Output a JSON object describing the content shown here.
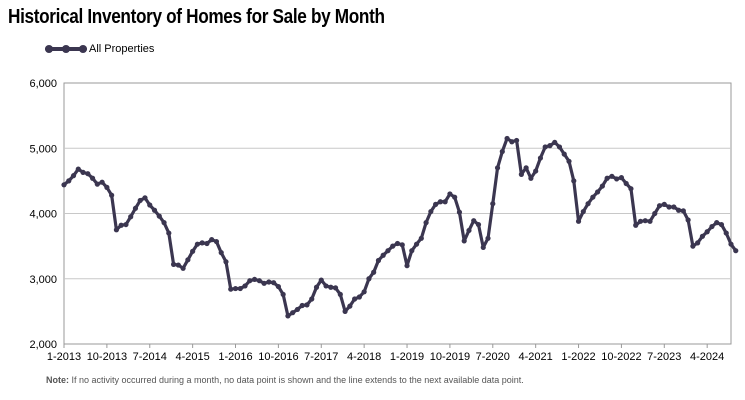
{
  "chart_data": {
    "type": "line",
    "title": "Historical Inventory of Homes for Sale by Month",
    "xlabel": "",
    "ylabel": "",
    "ylim": [
      2000,
      6000
    ],
    "y_ticks": [
      2000,
      3000,
      4000,
      5000,
      6000
    ],
    "y_tick_labels": [
      "2,000",
      "3,000",
      "4,000",
      "5,000",
      "6,000"
    ],
    "x_tick_labels": [
      "1-2013",
      "10-2013",
      "7-2014",
      "4-2015",
      "1-2016",
      "10-2016",
      "7-2017",
      "4-2018",
      "1-2019",
      "10-2019",
      "7-2020",
      "4-2021",
      "1-2022",
      "10-2022",
      "7-2023",
      "4-2024"
    ],
    "x_tick_months": [
      0,
      9,
      18,
      27,
      36,
      45,
      54,
      63,
      72,
      81,
      90,
      99,
      108,
      117,
      126,
      135
    ],
    "x_range_months": [
      0,
      140
    ],
    "legend": {
      "position": "top-left",
      "entries": [
        "All Properties"
      ]
    },
    "series": [
      {
        "name": "All Properties",
        "color": "#3b3650",
        "start": "1-2013",
        "values": [
          4440,
          4500,
          4580,
          4680,
          4630,
          4610,
          4540,
          4450,
          4480,
          4400,
          4280,
          3750,
          3820,
          3830,
          3950,
          4080,
          4200,
          4240,
          4130,
          4050,
          3960,
          3860,
          3700,
          3220,
          3210,
          3160,
          3290,
          3420,
          3530,
          3550,
          3540,
          3600,
          3570,
          3400,
          3260,
          2840,
          2850,
          2850,
          2890,
          2970,
          2990,
          2970,
          2930,
          2950,
          2940,
          2880,
          2760,
          2430,
          2480,
          2530,
          2590,
          2600,
          2690,
          2870,
          2980,
          2890,
          2870,
          2860,
          2760,
          2500,
          2580,
          2690,
          2720,
          2800,
          3000,
          3100,
          3280,
          3360,
          3430,
          3500,
          3540,
          3520,
          3200,
          3430,
          3530,
          3620,
          3860,
          4030,
          4140,
          4180,
          4180,
          4300,
          4250,
          4020,
          3580,
          3740,
          3890,
          3830,
          3480,
          3620,
          4150,
          4700,
          4950,
          5150,
          5100,
          5120,
          4600,
          4700,
          4540,
          4650,
          4850,
          5020,
          5040,
          5090,
          5020,
          4910,
          4800,
          4500,
          3880,
          4030,
          4150,
          4250,
          4330,
          4420,
          4540,
          4570,
          4530,
          4550,
          4460,
          4380,
          3820,
          3880,
          3890,
          3880,
          4000,
          4120,
          4140,
          4100,
          4100,
          4050,
          4040,
          3900,
          3500,
          3550,
          3650,
          3720,
          3800,
          3860,
          3830,
          3700,
          3530,
          3430
        ]
      }
    ]
  },
  "note": {
    "label": "Note:",
    "text": " If no activity occurred during a month, no data point is shown and the line extends to the next available data point."
  }
}
